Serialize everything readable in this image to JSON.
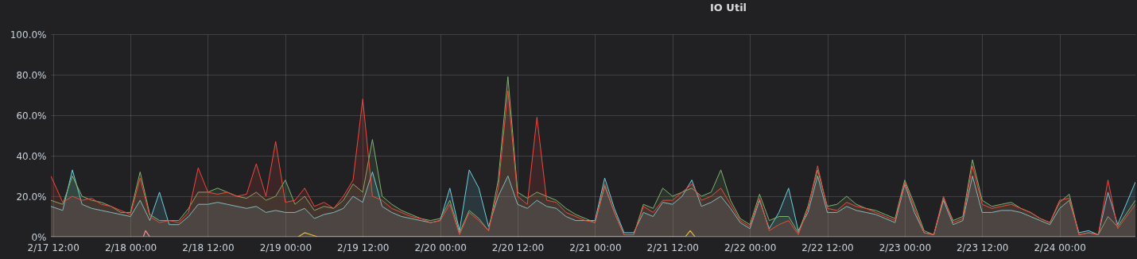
{
  "chart_data": {
    "type": "area",
    "title": "IO Util",
    "grid": true,
    "x": [
      "--02-17T11:40",
      "--02-17T13:30",
      "--02-17T15:00",
      "--02-17T16:30",
      "--02-17T18:00",
      "--02-17T19:30",
      "--02-17T21:00",
      "--02-17T22:30",
      "--02-18T00:00",
      "--02-18T01:30",
      "--02-18T03:00",
      "--02-18T04:30",
      "--02-18T06:00",
      "--02-18T07:30",
      "--02-18T09:00",
      "--02-18T10:30",
      "--02-18T12:00",
      "--02-18T13:30",
      "--02-18T15:00",
      "--02-18T16:30",
      "--02-18T18:00",
      "--02-18T19:30",
      "--02-18T21:00",
      "--02-18T22:30",
      "--02-19T00:00",
      "--02-19T01:30",
      "--02-19T03:00",
      "--02-19T04:30",
      "--02-19T06:00",
      "--02-19T07:30",
      "--02-19T09:00",
      "--02-19T10:30",
      "--02-19T12:00",
      "--02-19T13:30",
      "--02-19T15:00",
      "--02-19T16:30",
      "--02-19T18:00",
      "--02-19T19:30",
      "--02-19T21:00",
      "--02-19T22:30",
      "--02-20T00:00",
      "--02-20T01:30",
      "--02-20T03:00",
      "--02-20T04:30",
      "--02-20T06:00",
      "--02-20T07:30",
      "--02-20T09:00",
      "--02-20T10:30",
      "--02-20T12:00",
      "--02-20T13:30",
      "--02-20T15:00",
      "--02-20T16:30",
      "--02-20T18:00",
      "--02-20T19:30",
      "--02-20T21:00",
      "--02-20T22:30",
      "--02-21T00:00",
      "--02-21T01:30",
      "--02-21T03:00",
      "--02-21T04:30",
      "--02-21T06:00",
      "--02-21T07:30",
      "--02-21T09:00",
      "--02-21T10:30",
      "--02-21T12:00",
      "--02-21T13:30",
      "--02-21T15:00",
      "--02-21T16:30",
      "--02-21T18:00",
      "--02-21T19:30",
      "--02-21T21:00",
      "--02-21T22:30",
      "--02-22T00:00",
      "--02-22T01:30",
      "--02-22T03:00",
      "--02-22T04:30",
      "--02-22T06:00",
      "--02-22T07:30",
      "--02-22T09:00",
      "--02-22T10:30",
      "--02-22T12:00",
      "--02-22T13:30",
      "--02-22T15:00",
      "--02-22T16:30",
      "--02-22T18:00",
      "--02-22T19:30",
      "--02-22T21:00",
      "--02-22T22:30",
      "--02-23T00:00",
      "--02-23T01:30",
      "--02-23T03:00",
      "--02-23T04:30",
      "--02-23T06:00",
      "--02-23T07:30",
      "--02-23T09:00",
      "--02-23T10:30",
      "--02-23T12:00",
      "--02-23T13:30",
      "--02-23T15:00",
      "--02-23T16:30",
      "--02-23T18:00",
      "--02-23T19:30",
      "--02-23T21:00",
      "--02-23T22:30",
      "--02-24T00:00",
      "--02-24T01:30",
      "--02-24T03:00",
      "--02-24T04:30",
      "--02-24T06:00",
      "--02-24T07:30",
      "--02-24T09:00",
      "--02-24T11:45"
    ],
    "series": [
      {
        "color": "#6ed0e0",
        "values": [
          15,
          13,
          33,
          16,
          14,
          13,
          12,
          11,
          10,
          18,
          8,
          22,
          6,
          6,
          10,
          16,
          16,
          17,
          16,
          15,
          14,
          15,
          12,
          13,
          12,
          12,
          14,
          9,
          11,
          12,
          14,
          20,
          17,
          32,
          15,
          12,
          10,
          9,
          8,
          7,
          8,
          24,
          3,
          33,
          24,
          5,
          20,
          30,
          16,
          14,
          18,
          15,
          14,
          10,
          8,
          8,
          8,
          29,
          14,
          2,
          2,
          12,
          10,
          17,
          16,
          20,
          28,
          15,
          17,
          20,
          14,
          7,
          4,
          18,
          4,
          12,
          24,
          3,
          12,
          30,
          12,
          12,
          15,
          13,
          12,
          11,
          9,
          7,
          26,
          12,
          2,
          1,
          18,
          6,
          8,
          30,
          12,
          12,
          13,
          13,
          12,
          10,
          8,
          6,
          14,
          18,
          2,
          3,
          1,
          22,
          6,
          27
        ]
      },
      {
        "color": "#7eb26d",
        "values": [
          18,
          16,
          30,
          20,
          18,
          17,
          15,
          12,
          12,
          32,
          11,
          8,
          8,
          8,
          14,
          22,
          22,
          24,
          22,
          20,
          19,
          22,
          18,
          20,
          28,
          16,
          20,
          13,
          15,
          14,
          18,
          26,
          22,
          48,
          20,
          16,
          13,
          11,
          9,
          8,
          9,
          18,
          2,
          13,
          9,
          3,
          28,
          79,
          22,
          19,
          22,
          20,
          18,
          14,
          11,
          9,
          7,
          25,
          12,
          1,
          1,
          16,
          14,
          24,
          20,
          22,
          24,
          20,
          22,
          33,
          18,
          9,
          6,
          21,
          8,
          10,
          10,
          2,
          15,
          33,
          15,
          16,
          20,
          16,
          14,
          13,
          11,
          9,
          28,
          16,
          3,
          1,
          19,
          8,
          10,
          38,
          18,
          15,
          16,
          17,
          14,
          12,
          9,
          7,
          17,
          21,
          1,
          2,
          1,
          10,
          5,
          18
        ]
      },
      {
        "color": "#f0493e",
        "values": [
          30,
          17,
          20,
          18,
          19,
          16,
          15,
          13,
          11,
          29,
          10,
          7,
          8,
          7,
          12,
          34,
          22,
          21,
          22,
          20,
          21,
          36,
          20,
          47,
          17,
          18,
          24,
          15,
          17,
          14,
          20,
          28,
          68,
          20,
          18,
          14,
          12,
          10,
          9,
          7,
          8,
          16,
          1,
          12,
          8,
          3,
          24,
          72,
          20,
          16,
          59,
          18,
          17,
          12,
          10,
          8,
          7,
          26,
          12,
          1,
          1,
          15,
          12,
          18,
          18,
          22,
          26,
          18,
          20,
          24,
          16,
          8,
          5,
          19,
          3,
          6,
          8,
          1,
          14,
          35,
          14,
          13,
          17,
          15,
          14,
          12,
          10,
          8,
          27,
          14,
          2,
          1,
          20,
          7,
          9,
          35,
          16,
          14,
          15,
          16,
          14,
          12,
          9,
          7,
          18,
          19,
          1,
          2,
          1,
          28,
          4,
          16
        ]
      },
      {
        "type": "line",
        "color": "#8ac5a5",
        "x": [
          "--02-17T11:40",
          "--02-24T11:45"
        ],
        "values": [
          0,
          0
        ]
      },
      {
        "type": "line",
        "color": "#eab839",
        "x": [
          "--02-19T02:00",
          "--02-19T03:00",
          "--02-19T04:00",
          "--02-19T05:00",
          "--02-21T14:00",
          "--02-21T14:45",
          "--02-21T15:30"
        ],
        "values": [
          0,
          2,
          1,
          0,
          0,
          3,
          0
        ]
      },
      {
        "type": "line",
        "color": "#f29191",
        "x": [
          "--02-18T02:00",
          "--02-18T02:20",
          "--02-18T03:00"
        ],
        "values": [
          0,
          3,
          0
        ]
      }
    ],
    "xlim": [
      "--02-17T11:40",
      "--02-24T11:45"
    ],
    "xticks": [
      {
        "value": "--02-17T12:00",
        "label": "2/17 12:00"
      },
      {
        "value": "--02-18T00:00",
        "label": "2/18 00:00"
      },
      {
        "value": "--02-18T12:00",
        "label": "2/18 12:00"
      },
      {
        "value": "--02-19T00:00",
        "label": "2/19 00:00"
      },
      {
        "value": "--02-19T12:00",
        "label": "2/19 12:00"
      },
      {
        "value": "--02-20T00:00",
        "label": "2/20 00:00"
      },
      {
        "value": "--02-20T12:00",
        "label": "2/20 12:00"
      },
      {
        "value": "--02-21T00:00",
        "label": "2/21 00:00"
      },
      {
        "value": "--02-21T12:00",
        "label": "2/21 12:00"
      },
      {
        "value": "--02-22T00:00",
        "label": "2/22 00:00"
      },
      {
        "value": "--02-22T12:00",
        "label": "2/22 12:00"
      },
      {
        "value": "--02-23T00:00",
        "label": "2/23 00:00"
      },
      {
        "value": "--02-23T12:00",
        "label": "2/23 12:00"
      },
      {
        "value": "--02-24T00:00",
        "label": "2/24 00:00"
      }
    ],
    "ylim": [
      0,
      100
    ],
    "yticks": [
      {
        "value": 0,
        "label": "0%"
      },
      {
        "value": 20,
        "label": "20.0%"
      },
      {
        "value": 40,
        "label": "40.0%"
      },
      {
        "value": 60,
        "label": "60.0%"
      },
      {
        "value": 80,
        "label": "80.0%"
      },
      {
        "value": 100,
        "label": "100.0%"
      }
    ]
  }
}
